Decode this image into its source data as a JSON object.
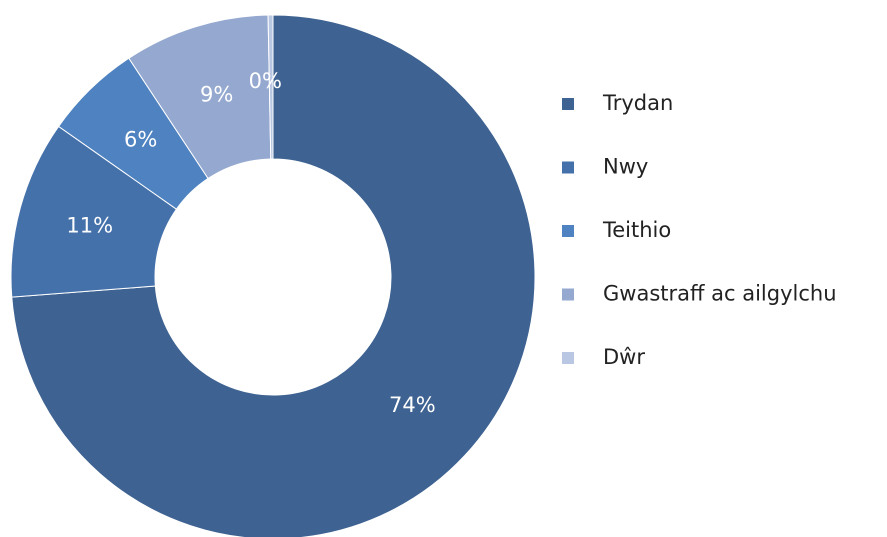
{
  "chart_data": {
    "type": "donut",
    "categories": [
      "Trydan",
      "Nwy",
      "Teithio",
      "Gwastraff ac ailgylchu",
      "Dŵr"
    ],
    "values": [
      74,
      11,
      6,
      9,
      0.3
    ],
    "value_labels": [
      "74%",
      "11%",
      "6%",
      "9%",
      "0%"
    ],
    "colors": [
      "#3e6291",
      "#4571ab",
      "#4e82c0",
      "#95a9d0",
      "#b9c7e2"
    ],
    "legend": "right"
  }
}
